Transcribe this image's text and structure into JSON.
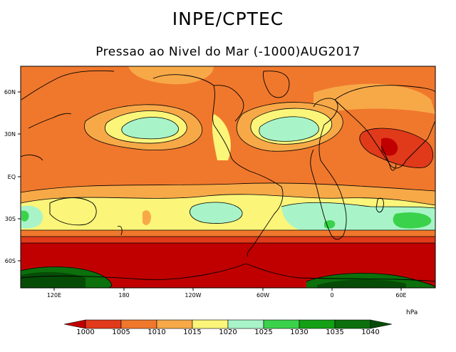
{
  "header": {
    "title": "INPE/CPTEC",
    "subtitle": "Pressao ao Nivel do Mar (-1000)AUG2017"
  },
  "map": {
    "lat_ticks": [
      "60N",
      "30N",
      "EQ",
      "30S",
      "60S"
    ],
    "lon_ticks": [
      "120E",
      "180",
      "120W",
      "60W",
      "0",
      "60E"
    ]
  },
  "colorbar": {
    "unit": "hPa",
    "levels": [
      "1000",
      "1005",
      "1010",
      "1015",
      "1020",
      "1025",
      "1030",
      "1035",
      "1040"
    ],
    "colors": [
      "#c00000",
      "#e03a1a",
      "#f0782c",
      "#f7a948",
      "#fbf57a",
      "#a8f4c8",
      "#3ad24a",
      "#14a014",
      "#0c700c",
      "#064c06"
    ]
  }
}
